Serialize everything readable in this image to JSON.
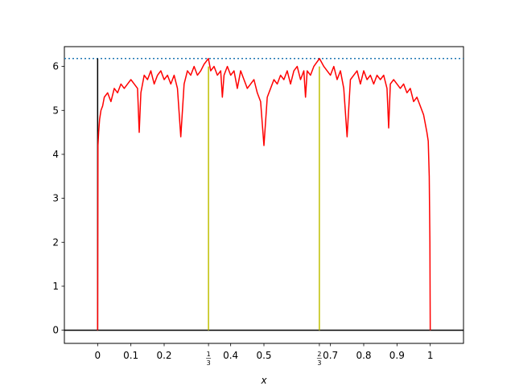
{
  "chart_data": {
    "type": "line",
    "title": "",
    "xlabel": "x",
    "ylabel": "",
    "xlim": [
      -0.1,
      1.1
    ],
    "ylim": [
      -0.3,
      6.45
    ],
    "grid": false,
    "legend": "none",
    "x_ticks": [
      {
        "value": 0,
        "label": "0"
      },
      {
        "value": 0.1,
        "label": "0.1"
      },
      {
        "value": 0.2,
        "label": "0.2"
      },
      {
        "value": 0.3333333,
        "label": "",
        "fraction": {
          "num": "1",
          "den": "3"
        }
      },
      {
        "value": 0.4,
        "label": "0.4"
      },
      {
        "value": 0.5,
        "label": "0.5"
      },
      {
        "value": 0.6666667,
        "label": "",
        "fraction": {
          "num": "2",
          "den": "3"
        }
      },
      {
        "value": 0.7,
        "label": "0.7"
      },
      {
        "value": 0.8,
        "label": "0.8"
      },
      {
        "value": 0.9,
        "label": "0.9"
      },
      {
        "value": 1,
        "label": "1"
      }
    ],
    "y_ticks": [
      {
        "value": 0,
        "label": "0"
      },
      {
        "value": 1,
        "label": "1"
      },
      {
        "value": 2,
        "label": "2"
      },
      {
        "value": 3,
        "label": "3"
      },
      {
        "value": 4,
        "label": "4"
      },
      {
        "value": 5,
        "label": "5"
      },
      {
        "value": 6,
        "label": "6"
      }
    ],
    "horizontal_lines": [
      {
        "y": 0,
        "color": "#000000",
        "style": "solid"
      },
      {
        "y": 6.18,
        "color": "#1f77b4",
        "style": "dotted"
      }
    ],
    "vertical_lines": [
      {
        "x": 0,
        "y0": 0,
        "y1": 6.18,
        "color": "#000000"
      },
      {
        "x": 0.3333333,
        "y0": 0,
        "y1": 6.0,
        "color": "#bfbf00"
      },
      {
        "x": 0.6666667,
        "y0": 0,
        "y1": 6.0,
        "color": "#bfbf00"
      }
    ],
    "series": [
      {
        "color": "#ff0000",
        "x": [
          0,
          0.001,
          0.003,
          0.006,
          0.01,
          0.015,
          0.02,
          0.03,
          0.04,
          0.05,
          0.06,
          0.07,
          0.08,
          0.09,
          0.1,
          0.11,
          0.12,
          0.125,
          0.13,
          0.14,
          0.15,
          0.16,
          0.17,
          0.18,
          0.19,
          0.2,
          0.21,
          0.22,
          0.23,
          0.24,
          0.25,
          0.26,
          0.27,
          0.28,
          0.29,
          0.3,
          0.31,
          0.32,
          0.333,
          0.34,
          0.35,
          0.36,
          0.37,
          0.375,
          0.38,
          0.39,
          0.4,
          0.41,
          0.42,
          0.43,
          0.44,
          0.45,
          0.46,
          0.47,
          0.48,
          0.49,
          0.5,
          0.51,
          0.52,
          0.53,
          0.54,
          0.55,
          0.56,
          0.57,
          0.58,
          0.59,
          0.6,
          0.61,
          0.62,
          0.625,
          0.63,
          0.64,
          0.65,
          0.667,
          0.68,
          0.69,
          0.7,
          0.71,
          0.72,
          0.73,
          0.74,
          0.75,
          0.76,
          0.77,
          0.78,
          0.79,
          0.8,
          0.81,
          0.82,
          0.83,
          0.84,
          0.85,
          0.86,
          0.87,
          0.875,
          0.88,
          0.89,
          0.9,
          0.91,
          0.92,
          0.93,
          0.94,
          0.95,
          0.96,
          0.97,
          0.98,
          0.985,
          0.99,
          0.994,
          0.997,
          0.999,
          1.0
        ],
        "y": [
          0,
          4.2,
          4.5,
          4.8,
          5.0,
          5.1,
          5.3,
          5.4,
          5.2,
          5.5,
          5.4,
          5.6,
          5.5,
          5.6,
          5.7,
          5.6,
          5.5,
          4.5,
          5.4,
          5.8,
          5.7,
          5.9,
          5.6,
          5.8,
          5.9,
          5.7,
          5.8,
          5.6,
          5.8,
          5.5,
          4.4,
          5.6,
          5.9,
          5.8,
          6.0,
          5.8,
          5.9,
          6.05,
          6.18,
          5.9,
          6.0,
          5.8,
          5.9,
          5.3,
          5.8,
          6.0,
          5.8,
          5.9,
          5.5,
          5.9,
          5.7,
          5.5,
          5.6,
          5.7,
          5.4,
          5.2,
          4.2,
          5.3,
          5.5,
          5.7,
          5.6,
          5.8,
          5.7,
          5.9,
          5.6,
          5.9,
          6.0,
          5.7,
          5.9,
          5.3,
          5.9,
          5.8,
          6.0,
          6.18,
          6.0,
          5.9,
          5.8,
          6.0,
          5.7,
          5.9,
          5.5,
          4.4,
          5.7,
          5.8,
          5.9,
          5.6,
          5.9,
          5.7,
          5.8,
          5.6,
          5.8,
          5.7,
          5.8,
          5.5,
          4.6,
          5.6,
          5.7,
          5.6,
          5.5,
          5.6,
          5.4,
          5.5,
          5.2,
          5.3,
          5.1,
          4.9,
          4.7,
          4.5,
          4.3,
          3.5,
          2.0,
          0
        ]
      }
    ]
  }
}
